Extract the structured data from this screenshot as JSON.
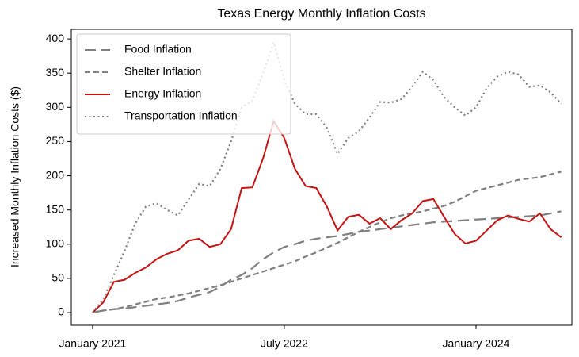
{
  "chart_data": {
    "type": "line",
    "title": "Texas Energy Monthly Inflation Costs",
    "ylabel": "Increased Monthly Inflation Costs ($)",
    "x": [
      "2021-01",
      "2021-02",
      "2021-03",
      "2021-04",
      "2021-05",
      "2021-06",
      "2021-07",
      "2021-08",
      "2021-09",
      "2021-10",
      "2021-11",
      "2021-12",
      "2022-01",
      "2022-02",
      "2022-03",
      "2022-04",
      "2022-05",
      "2022-06",
      "2022-07",
      "2022-08",
      "2022-09",
      "2022-10",
      "2022-11",
      "2022-12",
      "2023-01",
      "2023-02",
      "2023-03",
      "2023-04",
      "2023-05",
      "2023-06",
      "2023-07",
      "2023-08",
      "2023-09",
      "2023-10",
      "2023-11",
      "2023-12",
      "2024-01",
      "2024-02",
      "2024-03",
      "2024-04",
      "2024-05",
      "2024-06",
      "2024-07",
      "2024-08",
      "2024-09"
    ],
    "series": [
      {
        "name": "Food Inflation",
        "color": "#808080",
        "linestyle": "long-dash",
        "values": [
          0,
          3,
          5,
          6,
          8,
          10,
          12,
          14,
          17,
          22,
          26,
          30,
          38,
          48,
          55,
          65,
          78,
          88,
          96,
          100,
          105,
          108,
          110,
          112,
          115,
          118,
          120,
          122,
          124,
          126,
          128,
          130,
          132,
          133,
          134,
          135,
          136,
          137,
          138,
          139,
          140,
          141,
          142,
          145,
          148
        ]
      },
      {
        "name": "Shelter Inflation",
        "color": "#808080",
        "linestyle": "dashed",
        "values": [
          0,
          3,
          5,
          8,
          12,
          16,
          20,
          22,
          25,
          28,
          32,
          36,
          40,
          45,
          50,
          55,
          60,
          65,
          70,
          75,
          82,
          88,
          95,
          102,
          110,
          118,
          125,
          132,
          138,
          142,
          145,
          148,
          152,
          156,
          162,
          170,
          178,
          182,
          186,
          190,
          194,
          196,
          198,
          202,
          206
        ]
      },
      {
        "name": "Energy Inflation",
        "color": "#c41414",
        "linestyle": "solid",
        "values": [
          0,
          15,
          45,
          48,
          58,
          66,
          78,
          86,
          91,
          105,
          108,
          96,
          100,
          122,
          182,
          183,
          225,
          280,
          255,
          210,
          185,
          182,
          155,
          120,
          140,
          143,
          130,
          138,
          122,
          135,
          145,
          163,
          166,
          140,
          115,
          101,
          105,
          120,
          135,
          142,
          137,
          133,
          145,
          122,
          110
        ]
      },
      {
        "name": "Transportation Inflation",
        "color": "#808080",
        "linestyle": "dotted",
        "values": [
          0,
          20,
          55,
          90,
          130,
          155,
          160,
          150,
          142,
          165,
          188,
          185,
          210,
          250,
          300,
          310,
          350,
          395,
          340,
          305,
          290,
          290,
          270,
          232,
          255,
          265,
          285,
          308,
          307,
          312,
          330,
          352,
          340,
          315,
          300,
          288,
          300,
          328,
          345,
          352,
          348,
          330,
          332,
          322,
          305
        ]
      }
    ],
    "xlim": [
      "2020-11",
      "2024-10"
    ],
    "xticks": [
      {
        "value": "2021-01",
        "label": "January 2021"
      },
      {
        "value": "2022-07",
        "label": "July 2022"
      },
      {
        "value": "2024-01",
        "label": "January 2024"
      }
    ],
    "ylim": [
      -18.5,
      414
    ],
    "yticks": [
      0,
      50,
      100,
      150,
      200,
      250,
      300,
      350,
      400
    ],
    "legend": "upper left",
    "grid": false
  }
}
